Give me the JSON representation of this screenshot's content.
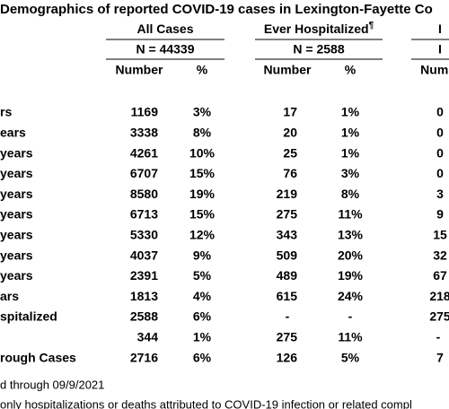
{
  "header": {
    "title": "Demographics of reported COVID-19 cases in Lexington-Fayette Co"
  },
  "groups": [
    {
      "name": "All Cases",
      "n": "N = 44339"
    },
    {
      "name": "Ever Hospitalized",
      "mark": "¶",
      "n": "N = 2588"
    },
    {
      "name": "I",
      "n": "I"
    }
  ],
  "columns": [
    "Number",
    "%",
    "Number",
    "%",
    "Numb"
  ],
  "table": {
    "rows": [
      {
        "label": "rs",
        "cells": [
          1169,
          "3%",
          17,
          "1%",
          0
        ]
      },
      {
        "label": "ears",
        "cells": [
          3338,
          "8%",
          20,
          "1%",
          0
        ]
      },
      {
        "label": "years",
        "cells": [
          4261,
          "10%",
          25,
          "1%",
          0
        ]
      },
      {
        "label": "years",
        "cells": [
          6707,
          "15%",
          76,
          "3%",
          0
        ]
      },
      {
        "label": "years",
        "cells": [
          8580,
          "19%",
          219,
          "8%",
          3
        ]
      },
      {
        "label": "years",
        "cells": [
          6713,
          "15%",
          275,
          "11%",
          9
        ]
      },
      {
        "label": "years",
        "cells": [
          5330,
          "12%",
          343,
          "13%",
          15
        ]
      },
      {
        "label": "years",
        "cells": [
          4037,
          "9%",
          509,
          "20%",
          32
        ]
      },
      {
        "label": "years",
        "cells": [
          2391,
          "5%",
          489,
          "19%",
          67
        ]
      },
      {
        "label": "ars",
        "cells": [
          1813,
          "4%",
          615,
          "24%",
          218
        ]
      },
      {
        "label": "spitalized",
        "cells": [
          2588,
          "6%",
          "-",
          "-",
          275
        ]
      },
      {
        "label": null,
        "cells": [
          344,
          "1%",
          275,
          "11%",
          "-"
        ]
      },
      {
        "label": "rough Cases",
        "cells": [
          2716,
          "6%",
          126,
          "5%",
          7
        ]
      }
    ]
  },
  "footnotes": [
    "d through 09/9/2021",
    "only hospitalizations or deaths attributed to COVID-19 infection or related compl"
  ]
}
